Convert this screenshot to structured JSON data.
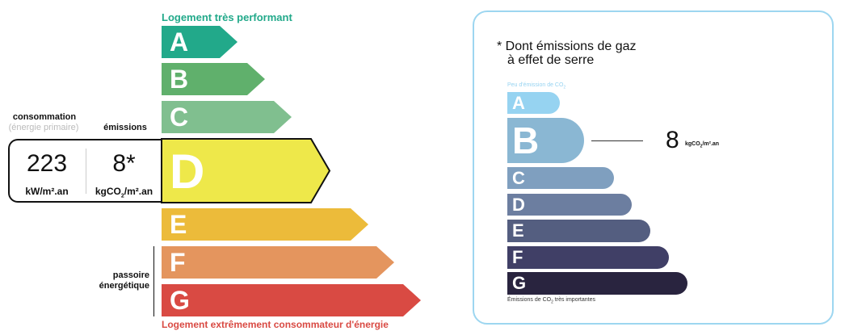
{
  "energy": {
    "top_label": "Logement très performant",
    "bottom_label": "Logement extrêmement consommateur d'énergie",
    "classes": [
      {
        "letter": "A",
        "color": "#22a98a"
      },
      {
        "letter": "B",
        "color": "#60b06c"
      },
      {
        "letter": "C",
        "color": "#80bf8f"
      },
      {
        "letter": "D",
        "color": "#eee84a"
      },
      {
        "letter": "E",
        "color": "#ecbb3a"
      },
      {
        "letter": "F",
        "color": "#e4955e"
      },
      {
        "letter": "G",
        "color": "#d94a43"
      }
    ],
    "current_class": "D",
    "consumption_label": "consommation",
    "consumption_sub": "(énergie primaire)",
    "emissions_label": "émissions",
    "consumption_value": "223",
    "consumption_unit": "kW/m².an",
    "emissions_value": "8*",
    "emissions_unit_pre": "kgCO",
    "emissions_unit_sub": "2",
    "emissions_unit_post": "/m².an",
    "passoire_line1": "passoire",
    "passoire_line2": "énergétique"
  },
  "ges": {
    "title_line1": "* Dont émissions de gaz",
    "title_line2": "à effet de serre",
    "top_label_pre": "Peu d'émission de CO",
    "top_label_sub": "2",
    "bottom_label_pre": "Émissions de CO",
    "bottom_label_sub": "2",
    "bottom_label_post": " très importantes",
    "classes": [
      {
        "letter": "A",
        "color": "#96d3f1"
      },
      {
        "letter": "B",
        "color": "#8ab7d3"
      },
      {
        "letter": "C",
        "color": "#7f9fbf"
      },
      {
        "letter": "D",
        "color": "#6c7ea0"
      },
      {
        "letter": "E",
        "color": "#545e80"
      },
      {
        "letter": "F",
        "color": "#403f66"
      },
      {
        "letter": "G",
        "color": "#29243f"
      }
    ],
    "current_class": "B",
    "value": "8",
    "unit_pre": "kgCO",
    "unit_sub": "2",
    "unit_post": "/m².an",
    "border_color": "#9dd6f0"
  }
}
